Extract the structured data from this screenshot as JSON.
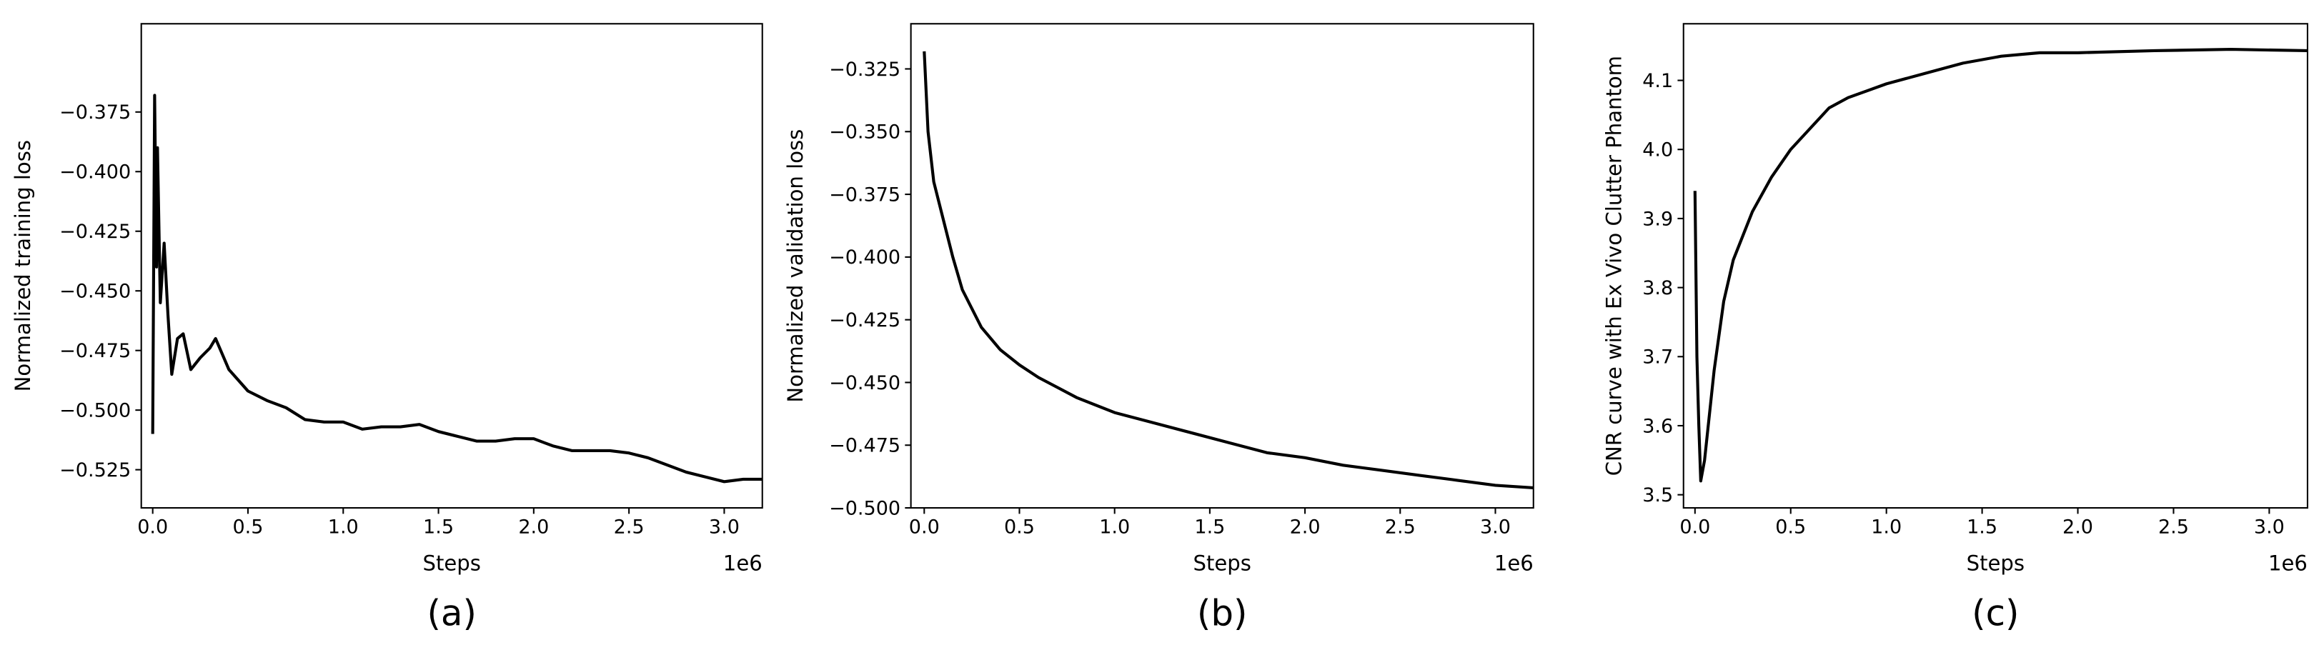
{
  "chart_data": [
    {
      "type": "line",
      "caption": "(a)",
      "x_label": "Steps",
      "y_label": "Normalized training loss",
      "x_offset_label": "1e6",
      "color": "#000000",
      "xlim": [
        -0.06,
        3.2
      ],
      "ylim": [
        -0.541,
        -0.338
      ],
      "xticks": [
        {
          "value": 0,
          "label": "0.0"
        },
        {
          "value": 0.5,
          "label": "0.5"
        },
        {
          "value": 1,
          "label": "1.0"
        },
        {
          "value": 1.5,
          "label": "1.5"
        },
        {
          "value": 2,
          "label": "2.0"
        },
        {
          "value": 2.5,
          "label": "2.5"
        },
        {
          "value": 3,
          "label": "3.0"
        }
      ],
      "yticks": [
        {
          "value": -0.525,
          "label": "−0.525"
        },
        {
          "value": -0.5,
          "label": "−0.500"
        },
        {
          "value": -0.475,
          "label": "−0.475"
        },
        {
          "value": -0.45,
          "label": "−0.450"
        },
        {
          "value": -0.425,
          "label": "−0.425"
        },
        {
          "value": -0.4,
          "label": "−0.400"
        },
        {
          "value": -0.375,
          "label": "−0.375"
        }
      ],
      "x": [
        0.0,
        0.01,
        0.02,
        0.025,
        0.04,
        0.06,
        0.08,
        0.1,
        0.13,
        0.16,
        0.2,
        0.25,
        0.3,
        0.33,
        0.4,
        0.5,
        0.6,
        0.7,
        0.8,
        0.9,
        1.0,
        1.1,
        1.2,
        1.3,
        1.4,
        1.5,
        1.6,
        1.7,
        1.8,
        1.9,
        2.0,
        2.1,
        2.2,
        2.3,
        2.4,
        2.5,
        2.6,
        2.7,
        2.8,
        2.9,
        3.0,
        3.1,
        3.2
      ],
      "values": [
        -0.51,
        -0.368,
        -0.44,
        -0.39,
        -0.455,
        -0.43,
        -0.46,
        -0.485,
        -0.47,
        -0.468,
        -0.483,
        -0.478,
        -0.474,
        -0.47,
        -0.483,
        -0.492,
        -0.496,
        -0.499,
        -0.504,
        -0.505,
        -0.505,
        -0.508,
        -0.507,
        -0.507,
        -0.506,
        -0.509,
        -0.511,
        -0.513,
        -0.513,
        -0.512,
        -0.512,
        -0.515,
        -0.517,
        -0.517,
        -0.517,
        -0.518,
        -0.52,
        -0.523,
        -0.526,
        -0.528,
        -0.53,
        -0.529,
        -0.529
      ]
    },
    {
      "type": "line",
      "caption": "(b)",
      "x_label": "Steps",
      "y_label": "Normalized validation loss",
      "x_offset_label": "1e6",
      "color": "#000000",
      "xlim": [
        -0.07,
        3.2
      ],
      "ylim": [
        -0.5,
        -0.307
      ],
      "xticks": [
        {
          "value": 0,
          "label": "0.0"
        },
        {
          "value": 0.5,
          "label": "0.5"
        },
        {
          "value": 1,
          "label": "1.0"
        },
        {
          "value": 1.5,
          "label": "1.5"
        },
        {
          "value": 2,
          "label": "2.0"
        },
        {
          "value": 2.5,
          "label": "2.5"
        },
        {
          "value": 3,
          "label": "3.0"
        }
      ],
      "yticks": [
        {
          "value": -0.5,
          "label": "−0.500"
        },
        {
          "value": -0.475,
          "label": "−0.475"
        },
        {
          "value": -0.45,
          "label": "−0.450"
        },
        {
          "value": -0.425,
          "label": "−0.425"
        },
        {
          "value": -0.4,
          "label": "−0.400"
        },
        {
          "value": -0.375,
          "label": "−0.375"
        },
        {
          "value": -0.35,
          "label": "−0.350"
        },
        {
          "value": -0.325,
          "label": "−0.325"
        }
      ],
      "x": [
        0.0,
        0.02,
        0.05,
        0.1,
        0.15,
        0.2,
        0.3,
        0.4,
        0.5,
        0.6,
        0.7,
        0.8,
        1.0,
        1.2,
        1.4,
        1.6,
        1.8,
        2.0,
        2.2,
        2.4,
        2.6,
        2.8,
        3.0,
        3.2
      ],
      "values": [
        -0.318,
        -0.35,
        -0.37,
        -0.385,
        -0.4,
        -0.413,
        -0.428,
        -0.437,
        -0.443,
        -0.448,
        -0.452,
        -0.456,
        -0.462,
        -0.466,
        -0.47,
        -0.474,
        -0.478,
        -0.48,
        -0.483,
        -0.485,
        -0.487,
        -0.489,
        -0.491,
        -0.492
      ]
    },
    {
      "type": "line",
      "caption": "(c)",
      "x_label": "Steps",
      "y_label": "CNR curve with Ex Vivo Clutter Phantom",
      "x_offset_label": "1e6",
      "color": "#000000",
      "xlim": [
        -0.06,
        3.2
      ],
      "ylim": [
        3.481,
        4.182
      ],
      "xticks": [
        {
          "value": 0,
          "label": "0.0"
        },
        {
          "value": 0.5,
          "label": "0.5"
        },
        {
          "value": 1,
          "label": "1.0"
        },
        {
          "value": 1.5,
          "label": "1.5"
        },
        {
          "value": 2,
          "label": "2.0"
        },
        {
          "value": 2.5,
          "label": "2.5"
        },
        {
          "value": 3,
          "label": "3.0"
        }
      ],
      "yticks": [
        3.5,
        3.6,
        3.7,
        3.8,
        3.9,
        {
          "value": 4,
          "label": "4.0"
        },
        4.1
      ],
      "x": [
        0.0,
        0.01,
        0.02,
        0.03,
        0.05,
        0.1,
        0.15,
        0.2,
        0.3,
        0.4,
        0.5,
        0.6,
        0.7,
        0.8,
        0.9,
        1.0,
        1.2,
        1.4,
        1.6,
        1.8,
        2.0,
        2.4,
        2.8,
        3.2
      ],
      "values": [
        3.94,
        3.7,
        3.6,
        3.52,
        3.55,
        3.68,
        3.78,
        3.84,
        3.91,
        3.96,
        4.0,
        4.03,
        4.06,
        4.075,
        4.085,
        4.095,
        4.11,
        4.125,
        4.135,
        4.14,
        4.14,
        4.143,
        4.145,
        4.143
      ]
    }
  ]
}
